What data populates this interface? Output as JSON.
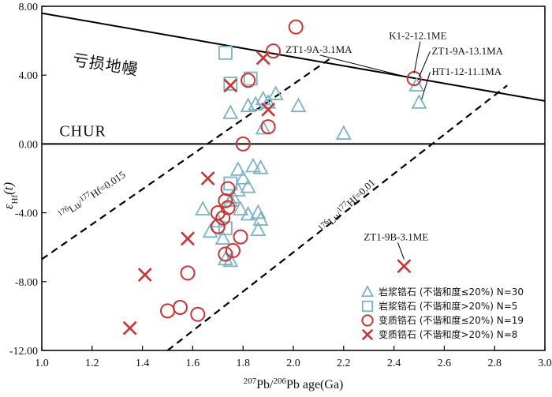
{
  "chart_data": {
    "type": "scatter",
    "xlabel": "207Pb/206Pb age(Ga)",
    "xlabel_parts": {
      "sup1": "207",
      "mid": "Pb/",
      "sup2": "206",
      "tail": "Pb age(Ga)"
    },
    "ylabel_parts": {
      "main": "ε",
      "sub": "Hf",
      "tail": "(t)"
    },
    "xlim": [
      1.0,
      3.0
    ],
    "ylim": [
      -12.0,
      8.0
    ],
    "xticks": [
      1.0,
      1.2,
      1.4,
      1.6,
      1.8,
      2.0,
      2.2,
      2.4,
      2.6,
      2.8,
      3.0
    ],
    "xtick_labels": [
      "1.0",
      "1.2",
      "1.4",
      "1.6",
      "1.8",
      "2.0",
      "2.2",
      "2.4",
      "2.6",
      "2.8",
      "3.0"
    ],
    "yticks": [
      8.0,
      4.0,
      0.0,
      -4.0,
      -8.0,
      -12.0
    ],
    "ytick_labels": [
      "8.00",
      "4.00",
      "0.00",
      "-4.00",
      "-8.00",
      "-12.00"
    ],
    "colors": {
      "triangle": "#7bb3c5",
      "square": "#7bb3c5",
      "circle": "#cc3333",
      "cross": "#cc3333",
      "axis": "#000000"
    },
    "reference_lines": [
      {
        "name": "depleted-mantle",
        "label": "亏损地幔",
        "x": [
          1.0,
          3.0
        ],
        "y": [
          7.6,
          2.5
        ],
        "style": "solid"
      },
      {
        "name": "chur",
        "label": "CHUR",
        "x": [
          1.0,
          3.0
        ],
        "y": [
          0.0,
          0.0
        ],
        "style": "solid"
      },
      {
        "name": "ratio-0015",
        "label_parts": {
          "sup1": "176",
          "a": "Lu/",
          "sup2": "177",
          "b": "Hf=0.015"
        },
        "x": [
          1.0,
          2.15
        ],
        "y": [
          -6.7,
          5.0
        ],
        "style": "dashed"
      },
      {
        "name": "ratio-001",
        "label_parts": {
          "sup1": "176",
          "a": "Lu/",
          "sup2": "177",
          "b": "Hf=0.01"
        },
        "x": [
          1.5,
          2.85
        ],
        "y": [
          -12.0,
          3.4
        ],
        "style": "dashed"
      }
    ],
    "series": [
      {
        "name": "岩浆锆石 (不谐和度≤20%) N=30",
        "marker": "triangle",
        "points": [
          [
            1.75,
            1.8
          ],
          [
            1.82,
            2.2
          ],
          [
            1.85,
            2.3
          ],
          [
            1.88,
            2.6
          ],
          [
            1.9,
            2.4
          ],
          [
            1.93,
            2.9
          ],
          [
            2.02,
            2.2
          ],
          [
            2.2,
            0.6
          ],
          [
            2.49,
            3.4
          ],
          [
            2.5,
            2.4
          ],
          [
            1.88,
            0.9
          ],
          [
            1.78,
            -1.5
          ],
          [
            1.8,
            -2.0
          ],
          [
            1.82,
            -2.5
          ],
          [
            1.84,
            -1.3
          ],
          [
            1.87,
            -1.4
          ],
          [
            1.78,
            -2.7
          ],
          [
            1.76,
            -3.1
          ],
          [
            1.75,
            -3.3
          ],
          [
            1.79,
            -3.8
          ],
          [
            1.82,
            -4.1
          ],
          [
            1.86,
            -4.0
          ],
          [
            1.87,
            -4.4
          ],
          [
            1.86,
            -5.0
          ],
          [
            1.64,
            -3.8
          ],
          [
            1.67,
            -5.1
          ],
          [
            1.7,
            -4.5
          ],
          [
            1.72,
            -5.5
          ],
          [
            1.73,
            -6.7
          ],
          [
            1.75,
            -6.8
          ]
        ]
      },
      {
        "name": "岩浆锆石 (不谐和度>20%) N=5",
        "marker": "square",
        "points": [
          [
            1.73,
            5.3
          ],
          [
            1.75,
            3.5
          ],
          [
            1.83,
            3.8
          ],
          [
            1.75,
            -2.3
          ],
          [
            1.73,
            -4.9
          ]
        ]
      },
      {
        "name": "变质锆石 (不谐和度≤20%) N=19",
        "marker": "circle",
        "points": [
          [
            2.01,
            6.8
          ],
          [
            1.92,
            5.4
          ],
          [
            2.48,
            3.8
          ],
          [
            1.82,
            3.7
          ],
          [
            1.9,
            1.0
          ],
          [
            1.8,
            0.0
          ],
          [
            1.74,
            -2.6
          ],
          [
            1.73,
            -3.3
          ],
          [
            1.74,
            -3.7
          ],
          [
            1.7,
            -4.0
          ],
          [
            1.72,
            -4.3
          ],
          [
            1.7,
            -4.8
          ],
          [
            1.79,
            -5.4
          ],
          [
            1.76,
            -6.2
          ],
          [
            1.73,
            -6.4
          ],
          [
            1.58,
            -7.5
          ],
          [
            1.55,
            -9.5
          ],
          [
            1.5,
            -9.7
          ],
          [
            1.62,
            -9.9
          ]
        ]
      },
      {
        "name": "变质锆石 (不谐和度>20%) N=8",
        "marker": "cross",
        "points": [
          [
            1.88,
            5.0
          ],
          [
            1.75,
            3.4
          ],
          [
            1.9,
            2.0
          ],
          [
            1.66,
            -2.0
          ],
          [
            1.58,
            -5.5
          ],
          [
            1.41,
            -7.6
          ],
          [
            1.35,
            -10.7
          ],
          [
            2.44,
            -7.1
          ]
        ]
      }
    ],
    "annotations": [
      {
        "text": "K1-2-12.1ME",
        "x": 2.38,
        "y": 6.1,
        "target": [
          2.48,
          4.1
        ]
      },
      {
        "text": "ZT1-9A-3.1MA",
        "x": 1.97,
        "y": 5.3,
        "target": [
          2.45,
          3.9
        ]
      },
      {
        "text": "ZT1-9A-13.1MA",
        "x": 2.55,
        "y": 5.2,
        "target": [
          2.5,
          3.9
        ]
      },
      {
        "text": "HT1-12-11.1MA",
        "x": 2.55,
        "y": 4.0,
        "target": [
          2.51,
          2.6
        ]
      },
      {
        "text": "ZT1-9B-3.1ME",
        "x": 2.28,
        "y": -5.6,
        "target": [
          2.44,
          -6.7
        ]
      }
    ],
    "legend_position": "bottom-right"
  }
}
